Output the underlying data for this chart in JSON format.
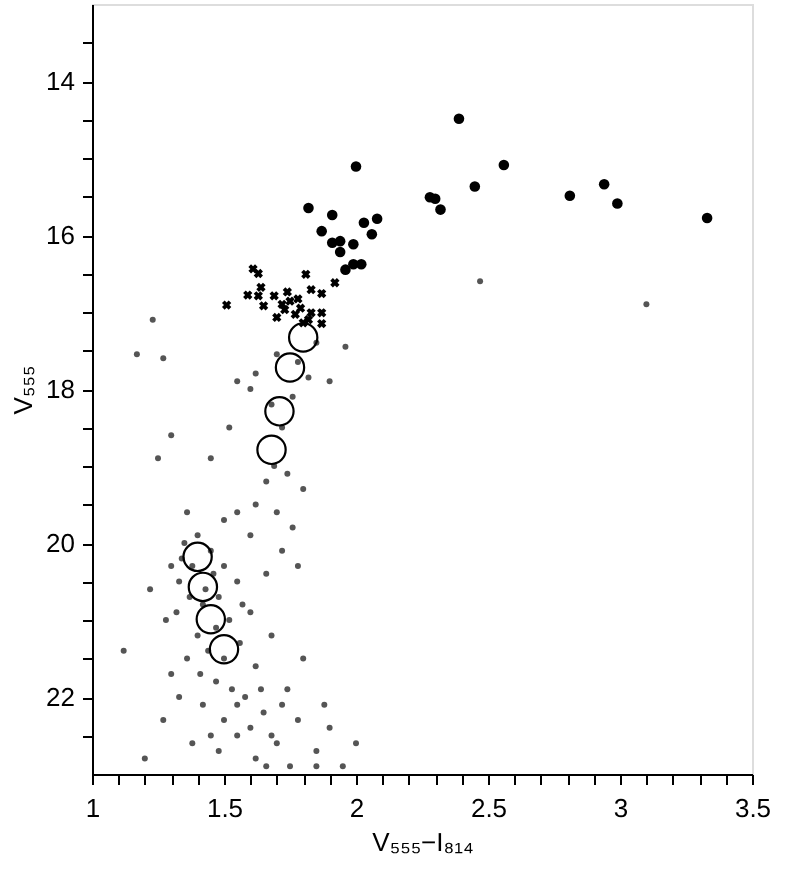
{
  "chart_data": {
    "type": "scatter",
    "xlabel": "V₅₅₅−I₈₁₄",
    "ylabel": "V₅₅₅",
    "xlim": [
      1,
      3.5
    ],
    "ylim": [
      23,
      13
    ],
    "xticks": [
      1,
      {
        "value": 1.1,
        "label": null
      },
      {
        "value": 1.2,
        "label": null
      },
      {
        "value": 1.3,
        "label": null
      },
      {
        "value": 1.4,
        "label": null
      },
      1.5,
      {
        "value": 1.6,
        "label": null
      },
      {
        "value": 1.7,
        "label": null
      },
      {
        "value": 1.8,
        "label": null
      },
      {
        "value": 1.9,
        "label": null
      },
      2,
      {
        "value": 2.1,
        "label": null
      },
      {
        "value": 2.2,
        "label": null
      },
      {
        "value": 2.3,
        "label": null
      },
      {
        "value": 2.4,
        "label": null
      },
      2.5,
      {
        "value": 2.6,
        "label": null
      },
      {
        "value": 2.7,
        "label": null
      },
      {
        "value": 2.8,
        "label": null
      },
      {
        "value": 2.9,
        "label": null
      },
      3,
      {
        "value": 3.1,
        "label": null
      },
      {
        "value": 3.2,
        "label": null
      },
      {
        "value": 3.3,
        "label": null
      },
      {
        "value": 3.4,
        "label": null
      },
      3.5
    ],
    "yticks": [
      {
        "value": 13.5,
        "label": null
      },
      14,
      {
        "value": 14.5,
        "label": null
      },
      {
        "value": 15,
        "label": null
      },
      {
        "value": 15.5,
        "label": null
      },
      16,
      {
        "value": 16.5,
        "label": null
      },
      {
        "value": 17,
        "label": null
      },
      {
        "value": 17.5,
        "label": null
      },
      18,
      {
        "value": 18.5,
        "label": null
      },
      {
        "value": 19,
        "label": null
      },
      {
        "value": 19.5,
        "label": null
      },
      20,
      {
        "value": 20.5,
        "label": null
      },
      {
        "value": 21,
        "label": null
      },
      {
        "value": 21.5,
        "label": null
      },
      22,
      {
        "value": 22.5,
        "label": null
      }
    ],
    "grid": false,
    "series": [
      {
        "color": "#555555",
        "marker": "circle",
        "x": [
          1.23,
          1.17,
          1.27,
          1.62,
          1.85,
          1.96,
          1.9,
          2.47,
          3.1,
          1.25,
          1.55,
          1.7,
          1.78,
          1.82,
          1.76,
          1.72,
          1.68,
          1.6,
          1.69,
          1.66,
          1.74,
          1.8,
          1.62,
          1.55,
          1.7,
          1.76,
          1.5,
          1.36,
          1.3,
          1.45,
          1.52,
          1.6,
          1.72,
          1.78,
          1.66,
          1.35,
          1.38,
          1.33,
          1.45,
          1.5,
          1.55,
          1.42,
          1.32,
          1.28,
          1.48,
          1.52,
          1.6,
          1.4,
          1.36,
          1.44,
          1.56,
          1.62,
          1.3,
          1.47,
          1.53,
          1.58,
          1.42,
          1.65,
          1.5,
          1.55,
          1.6,
          1.7,
          1.48,
          1.62,
          1.75,
          1.68,
          1.85,
          1.95,
          1.78,
          1.9,
          1.2,
          1.12,
          1.22,
          1.68,
          1.74,
          1.8,
          1.88,
          2.0,
          1.27,
          1.38,
          1.34,
          1.4,
          1.46,
          1.43,
          1.37,
          1.5,
          1.47,
          1.57,
          1.3,
          1.41,
          1.33,
          1.55,
          1.64,
          1.72,
          1.45,
          1.66,
          1.85
        ],
        "values": [
          17.1,
          17.55,
          17.6,
          17.8,
          17.4,
          17.45,
          17.9,
          16.6,
          16.9,
          18.9,
          17.9,
          17.55,
          17.65,
          17.85,
          18.1,
          18.5,
          18.2,
          18.0,
          19.0,
          19.2,
          19.1,
          19.3,
          19.5,
          19.6,
          19.6,
          19.8,
          19.7,
          19.6,
          18.6,
          18.9,
          18.5,
          19.9,
          20.1,
          20.3,
          20.4,
          20.0,
          20.3,
          20.5,
          20.1,
          20.3,
          20.5,
          20.8,
          20.9,
          21.0,
          20.7,
          21.0,
          20.9,
          21.2,
          21.5,
          21.4,
          21.3,
          21.6,
          21.7,
          21.8,
          21.9,
          22.0,
          22.1,
          22.2,
          22.3,
          22.5,
          22.4,
          22.6,
          22.7,
          22.8,
          22.9,
          22.5,
          22.7,
          22.9,
          22.3,
          22.4,
          22.8,
          21.4,
          20.6,
          21.2,
          21.9,
          21.5,
          22.1,
          22.6,
          22.3,
          22.6,
          20.2,
          19.9,
          20.4,
          20.6,
          20.7,
          21.5,
          21.1,
          20.8,
          20.3,
          21.7,
          22.0,
          22.1,
          21.9,
          22.1,
          22.5,
          22.9,
          22.9
        ]
      },
      {
        "color": "#000000",
        "marker": "cross",
        "x": [
          1.61,
          1.63,
          1.81,
          1.92,
          1.59,
          1.64,
          1.63,
          1.69,
          1.74,
          1.83,
          1.87,
          1.51,
          1.65,
          1.72,
          1.75,
          1.78,
          1.73,
          1.79,
          1.83,
          1.87,
          1.7,
          1.8,
          1.82,
          1.87,
          1.77
        ],
        "values": [
          16.44,
          16.5,
          16.51,
          16.62,
          16.78,
          16.68,
          16.79,
          16.79,
          16.74,
          16.71,
          16.76,
          16.91,
          16.92,
          16.9,
          16.86,
          16.83,
          16.97,
          16.95,
          17.01,
          17.01,
          17.07,
          17.14,
          17.1,
          17.15,
          17.03
        ]
      },
      {
        "color": "#000000",
        "marker": "circle",
        "x": [
          2.39,
          2.0,
          2.56,
          2.45,
          2.28,
          2.3,
          2.32,
          2.81,
          2.94,
          2.99,
          3.33,
          1.82,
          1.91,
          2.08,
          2.03,
          1.87,
          2.06,
          1.91,
          1.94,
          1.99,
          1.94,
          1.99,
          2.02,
          1.96
        ],
        "values": [
          14.49,
          15.11,
          15.09,
          15.37,
          15.51,
          15.53,
          15.67,
          15.49,
          15.34,
          15.59,
          15.78,
          15.65,
          15.74,
          15.79,
          15.84,
          15.95,
          15.99,
          16.1,
          16.08,
          16.12,
          16.22,
          16.38,
          16.38,
          16.45
        ]
      },
      {
        "color": "#000000",
        "marker": "circle",
        "x": [
          1.8,
          1.75,
          1.71,
          1.68,
          1.4,
          1.42,
          1.45,
          1.5
        ],
        "values": [
          17.33,
          17.72,
          18.29,
          18.79,
          20.18,
          20.57,
          20.99,
          21.38
        ]
      }
    ]
  }
}
